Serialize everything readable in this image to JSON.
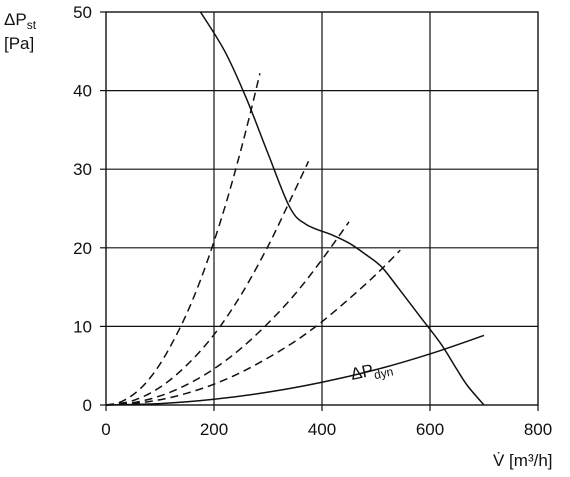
{
  "chart_data": {
    "type": "line",
    "ylabel": "ΔP",
    "ylabel_subscript": "st",
    "ylabel_unit": "[Pa]",
    "xlabel": "V̇ [m³/h]",
    "xlim": [
      0,
      800
    ],
    "ylim": [
      0,
      50
    ],
    "x_ticks": [
      "0",
      "200",
      "400",
      "600",
      "800"
    ],
    "y_ticks": [
      "0",
      "10",
      "20",
      "30",
      "40",
      "50"
    ],
    "grid": true,
    "annotation": {
      "text": "ΔP",
      "subscript": "dyn"
    },
    "colors": {
      "line": "#111111",
      "grid": "#111111"
    },
    "series": [
      {
        "style": "solid",
        "points": [
          [
            175,
            50
          ],
          [
            220,
            45
          ],
          [
            260,
            39
          ],
          [
            300,
            32
          ],
          [
            340,
            25.2
          ],
          [
            370,
            23
          ],
          [
            420,
            21.6
          ],
          [
            450,
            20.6
          ],
          [
            480,
            19.2
          ],
          [
            510,
            17.6
          ],
          [
            540,
            15
          ],
          [
            580,
            11.4
          ],
          [
            620,
            7.8
          ],
          [
            650,
            4.5
          ],
          [
            670,
            2.4
          ],
          [
            700,
            0
          ]
        ]
      },
      {
        "style": "solid",
        "points": [
          [
            0,
            0
          ],
          [
            100,
            0.18
          ],
          [
            200,
            0.73
          ],
          [
            300,
            1.64
          ],
          [
            400,
            2.9
          ],
          [
            500,
            4.5
          ],
          [
            600,
            6.5
          ],
          [
            700,
            8.85
          ]
        ]
      },
      {
        "style": "dashed",
        "points": [
          [
            0,
            0
          ],
          [
            25,
            0.33
          ],
          [
            50,
            1.3
          ],
          [
            75,
            2.9
          ],
          [
            100,
            5.2
          ],
          [
            125,
            8.2
          ],
          [
            150,
            11.7
          ],
          [
            175,
            15.9
          ],
          [
            200,
            20.8
          ],
          [
            225,
            26.3
          ],
          [
            250,
            32.5
          ],
          [
            270,
            37.9
          ],
          [
            285,
            42.2
          ]
        ]
      },
      {
        "style": "dashed",
        "points": [
          [
            0,
            0
          ],
          [
            50,
            0.56
          ],
          [
            100,
            2.25
          ],
          [
            150,
            5.1
          ],
          [
            200,
            8.95
          ],
          [
            250,
            14
          ],
          [
            300,
            20.2
          ],
          [
            340,
            25.9
          ],
          [
            375,
            31
          ]
        ]
      },
      {
        "style": "dashed",
        "points": [
          [
            0,
            0
          ],
          [
            50,
            0.28
          ],
          [
            100,
            1.15
          ],
          [
            150,
            2.6
          ],
          [
            200,
            4.6
          ],
          [
            250,
            7.2
          ],
          [
            300,
            10.4
          ],
          [
            350,
            14.1
          ],
          [
            400,
            18.5
          ],
          [
            450,
            23.3
          ]
        ]
      },
      {
        "style": "dashed",
        "points": [
          [
            0,
            0
          ],
          [
            50,
            0.17
          ],
          [
            100,
            0.67
          ],
          [
            150,
            1.5
          ],
          [
            200,
            2.65
          ],
          [
            250,
            4.15
          ],
          [
            300,
            6
          ],
          [
            350,
            8.1
          ],
          [
            400,
            10.6
          ],
          [
            450,
            13.5
          ],
          [
            500,
            16.6
          ],
          [
            545,
            19.7
          ]
        ]
      }
    ]
  }
}
